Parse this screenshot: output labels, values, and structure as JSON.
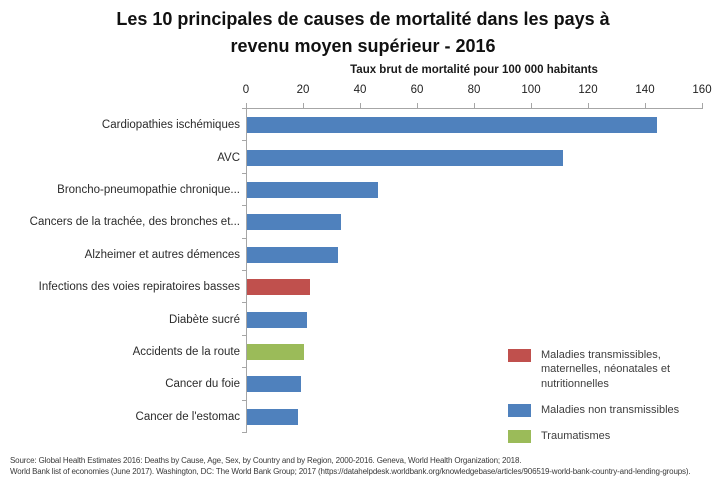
{
  "title": {
    "line1": "Les 10 principales de causes de mortalité dans les pays à",
    "line2": "revenu moyen supérieur - 2016"
  },
  "chart_data": {
    "type": "bar",
    "orientation": "horizontal",
    "title": "Les 10 principales de causes de mortalité dans les pays à revenu moyen supérieur - 2016",
    "xlabel": "Taux brut de mortalité pour 100 000 habitants",
    "ylabel": "",
    "xlim": [
      0,
      160
    ],
    "xticks": [
      0,
      20,
      40,
      60,
      80,
      100,
      120,
      140,
      160
    ],
    "grid": false,
    "legend_position": "bottom-right",
    "categories": [
      "Cardiopathies ischémiques",
      "AVC",
      "Broncho-pneumopathie chronique...",
      "Cancers de la trachée, des bronches et...",
      "Alzheimer et autres démences",
      "Infections des voies repiratoires basses",
      "Diabète sucré",
      "Accidents de la route",
      "Cancer du foie",
      "Cancer de l'estomac"
    ],
    "values": [
      144,
      111,
      46,
      33,
      32,
      22,
      21,
      20,
      19,
      18
    ],
    "bar_category_group": [
      "ncd",
      "ncd",
      "ncd",
      "ncd",
      "ncd",
      "transmissible",
      "ncd",
      "traumatisme",
      "ncd",
      "ncd"
    ],
    "colors": {
      "transmissible": "#C0504D",
      "ncd": "#4F81BD",
      "traumatisme": "#9BBB59"
    },
    "legend": [
      {
        "key": "transmissible",
        "label": "Maladies transmissibles, maternelles, néonatales et nutritionnelles"
      },
      {
        "key": "ncd",
        "label": "Maladies non transmissibles"
      },
      {
        "key": "traumatisme",
        "label": "Traumatismes"
      }
    ]
  },
  "footer": {
    "source_line1": "Source: Global Health Estimates 2016: Deaths by Cause, Age, Sex, by Country and by Region, 2000-2016. Geneva, World Health Organization; 2018.",
    "source_line2": "World Bank list of economies (June 2017). Washington, DC: The World Bank Group; 2017 (https://datahelpdesk.worldbank.org/knowledgebase/articles/906519-world-bank-country-and-lending-groups)."
  }
}
